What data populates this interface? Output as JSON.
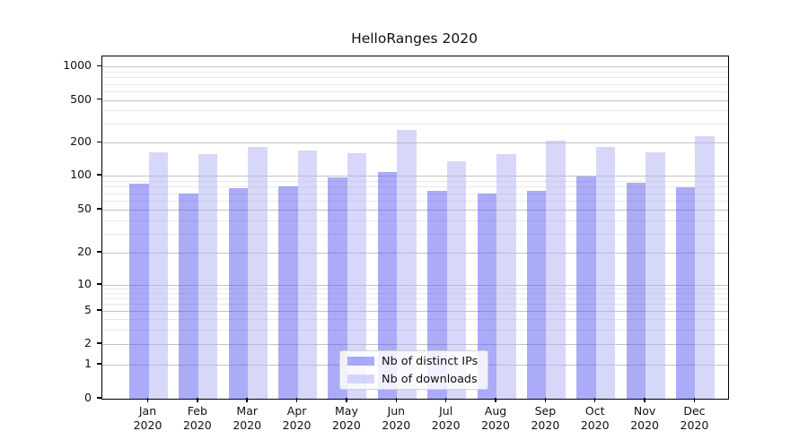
{
  "title": "HelloRanges 2020",
  "chart_data": {
    "type": "bar",
    "title": "HelloRanges 2020",
    "categories": [
      "Jan 2020",
      "Feb 2020",
      "Mar 2020",
      "Apr 2020",
      "May 2020",
      "Jun 2020",
      "Jul 2020",
      "Aug 2020",
      "Sep 2020",
      "Oct 2020",
      "Nov 2020",
      "Dec 2020"
    ],
    "x_months": [
      "Jan",
      "Feb",
      "Mar",
      "Apr",
      "May",
      "Jun",
      "Jul",
      "Aug",
      "Sep",
      "Oct",
      "Nov",
      "Dec"
    ],
    "x_year": "2020",
    "series": [
      {
        "name": "Nb of distinct IPs",
        "color_hex": "#a9a9f6",
        "fill_rgba": "rgba(88,88,240,0.5)",
        "values": [
          85,
          70,
          77,
          81,
          96,
          108,
          73,
          70,
          74,
          98,
          86,
          79
        ]
      },
      {
        "name": "Nb of downloads",
        "color_hex": "#d7d7fa",
        "fill_rgba": "rgba(176,176,246,0.5)",
        "values": [
          164,
          158,
          182,
          171,
          160,
          261,
          135,
          158,
          211,
          184,
          163,
          230
        ]
      }
    ],
    "yscale": "symlog",
    "y_ticks": [
      0,
      1,
      2,
      5,
      10,
      20,
      50,
      100,
      200,
      500,
      1000
    ],
    "y_tick_labels": [
      "0",
      "1",
      "2",
      "5",
      "10",
      "20",
      "50",
      "100",
      "200",
      "500",
      "1000"
    ],
    "ylim": [
      0,
      1240
    ],
    "grid": true,
    "legend": {
      "position": "lower center",
      "entries": [
        "Nb of distinct IPs",
        "Nb of downloads"
      ]
    }
  }
}
